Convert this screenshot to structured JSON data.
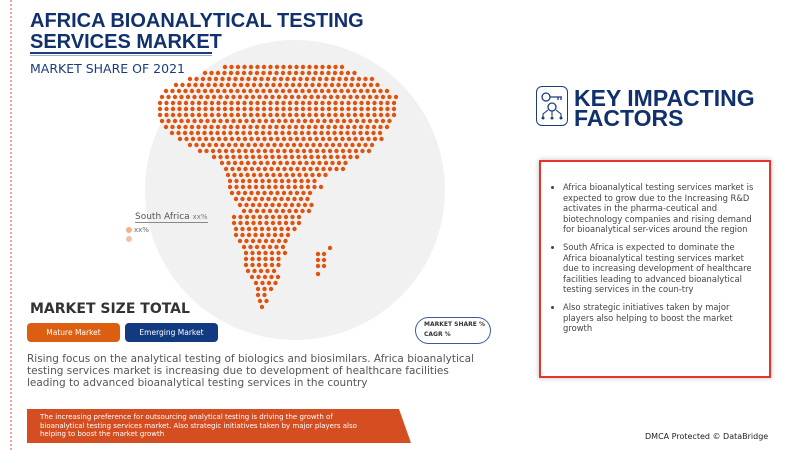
{
  "header": {
    "title": "AFRICA BIOANALYTICAL TESTING SERVICES MARKET",
    "subtitle": "MARKET SHARE OF 2021"
  },
  "map": {
    "region_label": "South Africa",
    "region_value": "xx%",
    "legend_value": "xx%",
    "dot_color": "#e0530e",
    "circle_color": "#f1f1f1"
  },
  "market_size": {
    "title": "MARKET SIZE TOTAL",
    "mature_label": "Mature Market",
    "emerging_label": "Emerging Market",
    "pill_line1": "MARKET SHARE %",
    "pill_line2": "CAGR %"
  },
  "description": "Rising focus on the analytical testing of biologics and biosimilars. Africa bioanalytical testing services market is increasing  due to development of healthcare facilities leading to advanced bioanalytical testing services in the country",
  "banner": "The increasing preference for outsourcing analytical testing is driving the growth of bioanalytical testing services market. Also strategic initiatives taken by major players also helping to boost the market growth",
  "key_factors": {
    "title_line1": "KEY IMPACTING",
    "title_line2": "FACTORS",
    "icon": "key-gear-network-icon",
    "items": [
      "Africa bioanalytical testing services market is expected to grow due to the Increasing R&D activates in the pharma-ceutical and biotechnology companies and rising demand for bioanalytical ser-vices around the region",
      "South Africa is expected to dominate the Africa bioanalytical testing services market due to increasing development of healthcare facilities leading to advanced bioanalytical testing services in the coun-try",
      "Also strategic initiatives taken by major players also helping to boost the market growth"
    ]
  },
  "footer": {
    "dmca": "DMCA Protected © DataBridge"
  },
  "colors": {
    "navy": "#10306e",
    "orange": "#dc5e10",
    "red_border": "#e8332a"
  }
}
